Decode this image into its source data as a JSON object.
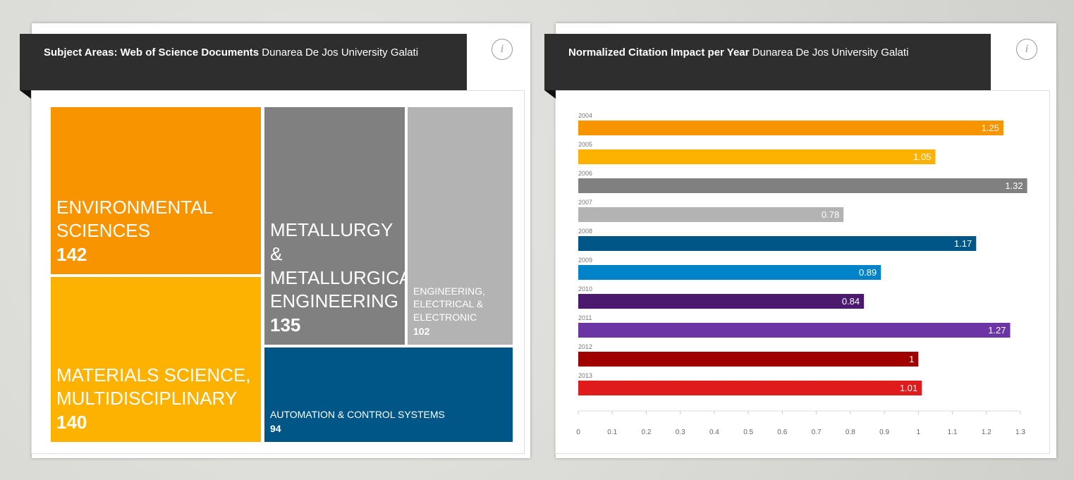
{
  "chart_data": [
    {
      "type": "treemap",
      "title": "Subject Areas: Web of Science Documents",
      "subtitle": "Dunarea De Jos University Galati",
      "categories": [
        "ENVIRONMENTAL SCIENCES",
        "MATERIALS SCIENCE, MULTIDISCIPLINARY",
        "METALLURGY & METALLURGICAL ENGINEERING",
        "ENGINEERING, ELECTRICAL & ELECTRONIC",
        "AUTOMATION & CONTROL SYSTEMS"
      ],
      "values": [
        142,
        140,
        135,
        102,
        94
      ],
      "colors": [
        "#f79400",
        "#fdb100",
        "#808080",
        "#b3b3b3",
        "#005787"
      ]
    },
    {
      "type": "bar",
      "orientation": "horizontal",
      "title": "Normalized Citation Impact per Year",
      "subtitle": "Dunarea De Jos University Galati",
      "categories": [
        "2004",
        "2005",
        "2006",
        "2007",
        "2008",
        "2009",
        "2010",
        "2011",
        "2012",
        "2013"
      ],
      "values": [
        1.25,
        1.05,
        1.32,
        0.78,
        1.17,
        0.89,
        0.84,
        1.27,
        1,
        1.01
      ],
      "colors": [
        "#f79400",
        "#fdb100",
        "#808080",
        "#b3b3b3",
        "#005787",
        "#0083c8",
        "#4b1a6e",
        "#6c35a6",
        "#a00000",
        "#e01b1b"
      ],
      "xlim": [
        0,
        1.3
      ],
      "xticks": [
        0,
        0.1,
        0.2,
        0.3,
        0.4,
        0.5,
        0.6,
        0.7,
        0.8,
        0.9,
        1,
        1.1,
        1.2,
        1.3
      ]
    }
  ]
}
